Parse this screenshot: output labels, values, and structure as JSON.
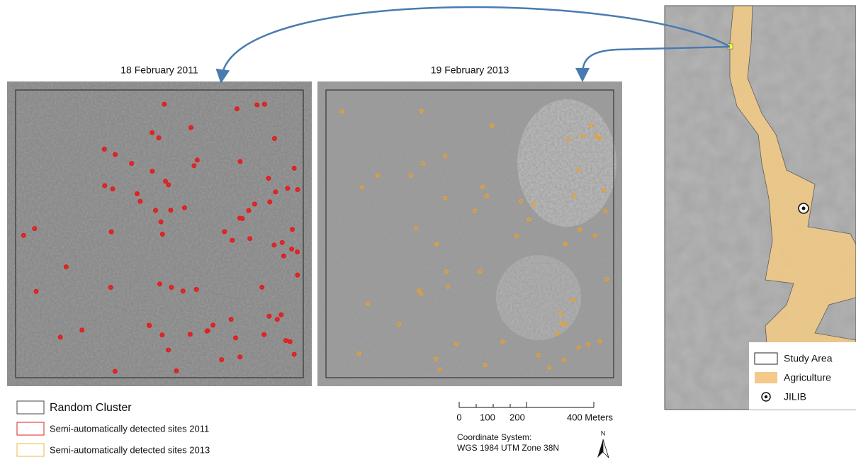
{
  "panels": [
    {
      "title": "18 February 2011"
    },
    {
      "title": "19 February 2013"
    }
  ],
  "legend": {
    "items": [
      "Random Cluster",
      "Semi-automatically detected sites 2011",
      "Semi-automatically detected sites 2013"
    ]
  },
  "scale_bar": {
    "labels": [
      "0",
      "100",
      "200",
      "400 Meters"
    ]
  },
  "coordinate_system": {
    "line1": "Coordinate System:",
    "line2": "WGS 1984 UTM Zone 38N"
  },
  "north_arrow": {
    "label": "N"
  },
  "inset_legend": {
    "items": [
      "Study Area",
      "Agriculture",
      "JILIB"
    ]
  }
}
